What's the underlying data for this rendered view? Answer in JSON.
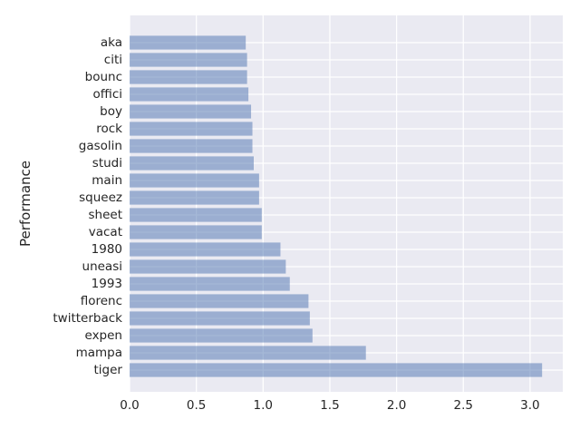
{
  "chart_data": {
    "type": "bar",
    "orientation": "horizontal",
    "ylabel": "Performance",
    "xlabel": "",
    "title": "",
    "categories": [
      "tiger",
      "mampa",
      "expen",
      "twitterback",
      "florenc",
      "1993",
      "uneasi",
      "1980",
      "vacat",
      "sheet",
      "squeez",
      "main",
      "studi",
      "gasolin",
      "rock",
      "boy",
      "offici",
      "bounc",
      "citi",
      "aka"
    ],
    "values": [
      3.09,
      1.77,
      1.37,
      1.35,
      1.34,
      1.2,
      1.17,
      1.13,
      0.99,
      0.99,
      0.97,
      0.97,
      0.93,
      0.92,
      0.92,
      0.91,
      0.89,
      0.88,
      0.88,
      0.87
    ],
    "xlim": [
      0,
      3.245
    ],
    "xticks": [
      0.0,
      0.5,
      1.0,
      1.5,
      2.0,
      2.5,
      3.0
    ],
    "xtick_labels": [
      "0.0",
      "0.5",
      "1.0",
      "1.5",
      "2.0",
      "2.5",
      "3.0"
    ],
    "grid": true,
    "style": "seaborn-darkgrid",
    "colors": {
      "bar": "#4c72b0",
      "bar_opacity": 0.5,
      "plot_background": "#eaeaf2",
      "grid": "#ffffff",
      "text": "#262626"
    }
  }
}
